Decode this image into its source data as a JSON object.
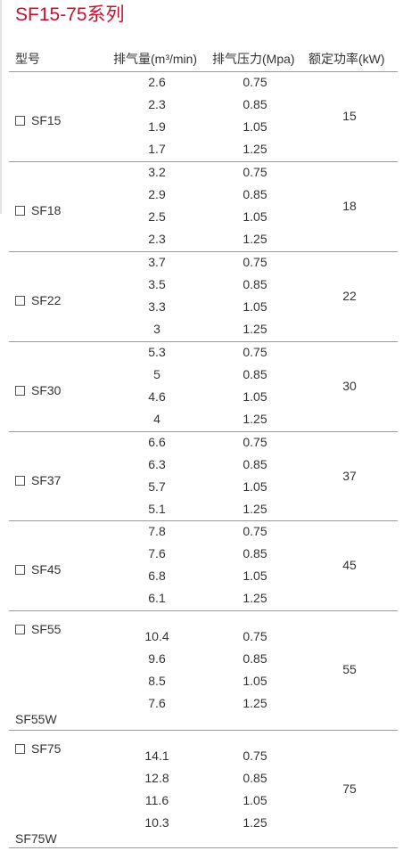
{
  "title": "SF15-75系列",
  "headers": {
    "model": "型号",
    "flow": "排气量(m³/min)",
    "pressure": "排气压力(Mpa)",
    "power": "额定功率(kW)"
  },
  "groups": [
    {
      "model": "SF15",
      "sub_model": "",
      "power": "15",
      "rows": [
        {
          "flow": "2.6",
          "pressure": "0.75"
        },
        {
          "flow": "2.3",
          "pressure": "0.85"
        },
        {
          "flow": "1.9",
          "pressure": "1.05"
        },
        {
          "flow": "1.7",
          "pressure": "1.25"
        }
      ]
    },
    {
      "model": "SF18",
      "sub_model": "",
      "power": "18",
      "rows": [
        {
          "flow": "3.2",
          "pressure": "0.75"
        },
        {
          "flow": "2.9",
          "pressure": "0.85"
        },
        {
          "flow": "2.5",
          "pressure": "1.05"
        },
        {
          "flow": "2.3",
          "pressure": "1.25"
        }
      ]
    },
    {
      "model": "SF22",
      "sub_model": "",
      "power": "22",
      "rows": [
        {
          "flow": "3.7",
          "pressure": "0.75"
        },
        {
          "flow": "3.5",
          "pressure": "0.85"
        },
        {
          "flow": "3.3",
          "pressure": "1.05"
        },
        {
          "flow": "3",
          "pressure": "1.25"
        }
      ]
    },
    {
      "model": "SF30",
      "sub_model": "",
      "power": "30",
      "rows": [
        {
          "flow": "5.3",
          "pressure": "0.75"
        },
        {
          "flow": "5",
          "pressure": "0.85"
        },
        {
          "flow": "4.6",
          "pressure": "1.05"
        },
        {
          "flow": "4",
          "pressure": "1.25"
        }
      ]
    },
    {
      "model": "SF37",
      "sub_model": "",
      "power": "37",
      "rows": [
        {
          "flow": "6.6",
          "pressure": "0.75"
        },
        {
          "flow": "6.3",
          "pressure": "0.85"
        },
        {
          "flow": "5.7",
          "pressure": "1.05"
        },
        {
          "flow": "5.1",
          "pressure": "1.25"
        }
      ]
    },
    {
      "model": "SF45",
      "sub_model": "",
      "power": "45",
      "rows": [
        {
          "flow": "7.8",
          "pressure": "0.75"
        },
        {
          "flow": "7.6",
          "pressure": "0.85"
        },
        {
          "flow": "6.8",
          "pressure": "1.05"
        },
        {
          "flow": "6.1",
          "pressure": "1.25"
        }
      ]
    },
    {
      "model": "SF55",
      "sub_model": "SF55W",
      "power": "55",
      "rows": [
        {
          "flow": "10.4",
          "pressure": "0.75"
        },
        {
          "flow": "9.6",
          "pressure": "0.85"
        },
        {
          "flow": "8.5",
          "pressure": "1.05"
        },
        {
          "flow": "7.6",
          "pressure": "1.25"
        }
      ]
    },
    {
      "model": "SF75",
      "sub_model": "SF75W",
      "power": "75",
      "rows": [
        {
          "flow": "14.1",
          "pressure": "0.75"
        },
        {
          "flow": "12.8",
          "pressure": "0.85"
        },
        {
          "flow": "11.6",
          "pressure": "1.05"
        },
        {
          "flow": "10.3",
          "pressure": "1.25"
        }
      ]
    }
  ]
}
